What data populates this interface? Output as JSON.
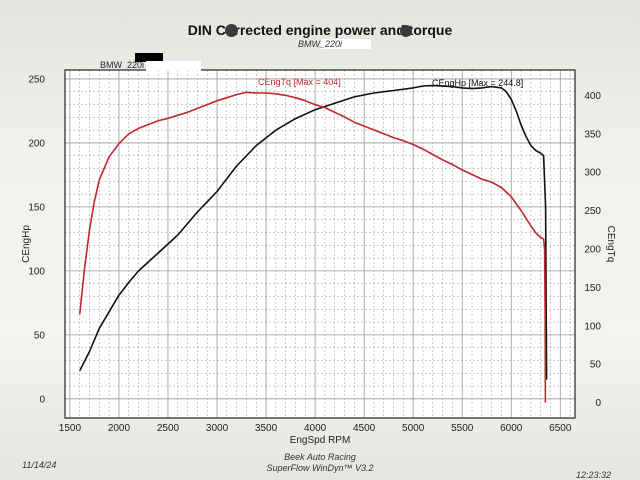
{
  "header": {
    "title": "DIN Corrected engine power and torque",
    "subtitle": "BMW_220i",
    "run_label": "BMW_220i"
  },
  "footer": {
    "company": "Beek Auto Racing",
    "software": "SuperFlow WinDyn™ V3.2",
    "date": "11/14/24",
    "time": "12:23:32"
  },
  "colors": {
    "hp_line": "#111111",
    "torque_line": "#c2272d",
    "grid": "#9a9a9a",
    "plot_bg": "#ffffff"
  },
  "chart_data": {
    "type": "line",
    "title": "DIN Corrected engine power and torque",
    "xlabel": "EngSpd RPM",
    "ylabel": "CEngHp",
    "y2label": "CEngTq",
    "xlim": [
      1450,
      6650
    ],
    "ylim": [
      -15,
      257
    ],
    "y2lim": [
      -20,
      433
    ],
    "xticks": [
      1500,
      2000,
      2500,
      3000,
      3500,
      4000,
      4500,
      5000,
      5500,
      6000,
      6500
    ],
    "yticks": [
      0,
      50,
      100,
      150,
      200,
      250
    ],
    "y2ticks": [
      0,
      50,
      100,
      150,
      200,
      250,
      300,
      350,
      400
    ],
    "grid": true,
    "series": [
      {
        "name": "CEngHp",
        "legend": "CEngHp [Max = 244.8]",
        "axis": "left",
        "x": [
          1600,
          1700,
          1800,
          1900,
          2000,
          2100,
          2200,
          2300,
          2400,
          2500,
          2600,
          2700,
          2800,
          2900,
          3000,
          3200,
          3400,
          3600,
          3800,
          4000,
          4200,
          4400,
          4600,
          4800,
          5000,
          5100,
          5200,
          5400,
          5500,
          5600,
          5700,
          5800,
          5900,
          5950,
          6000,
          6050,
          6100,
          6150,
          6200,
          6250,
          6300,
          6330,
          6350,
          6355,
          6360
        ],
        "values": [
          22,
          37,
          55,
          68,
          81,
          91,
          100,
          107,
          114,
          121,
          128,
          137,
          146,
          154,
          162,
          182,
          198,
          210,
          219,
          226,
          231,
          236,
          239,
          241,
          243,
          244.5,
          244.8,
          244,
          243,
          242.5,
          243,
          244,
          243,
          240,
          234,
          225,
          214,
          205,
          198,
          194,
          192,
          190,
          150,
          80,
          15
        ]
      },
      {
        "name": "CEngTq",
        "legend": "CEngTq [Max = 404]",
        "axis": "right",
        "x": [
          1600,
          1650,
          1700,
          1750,
          1800,
          1900,
          2000,
          2100,
          2200,
          2300,
          2400,
          2500,
          2600,
          2700,
          2800,
          2900,
          3000,
          3100,
          3200,
          3300,
          3400,
          3500,
          3600,
          3700,
          3800,
          3900,
          4000,
          4100,
          4200,
          4300,
          4400,
          4500,
          4600,
          4700,
          4800,
          4900,
          5000,
          5100,
          5200,
          5300,
          5400,
          5500,
          5600,
          5700,
          5800,
          5900,
          6000,
          6100,
          6200,
          6250,
          6300,
          6330,
          6340,
          6345,
          6348
        ],
        "values": [
          115,
          175,
          225,
          262,
          290,
          320,
          337,
          350,
          357,
          362,
          367,
          370,
          374,
          378,
          383,
          388,
          393,
          397,
          401,
          404,
          403,
          403,
          402,
          400,
          397,
          393,
          388,
          384,
          378,
          372,
          365,
          360,
          355,
          350,
          345,
          341,
          336,
          330,
          323,
          316,
          310,
          303,
          297,
          291,
          287,
          280,
          268,
          250,
          230,
          221,
          215,
          213,
          200,
          120,
          0
        ]
      }
    ]
  }
}
